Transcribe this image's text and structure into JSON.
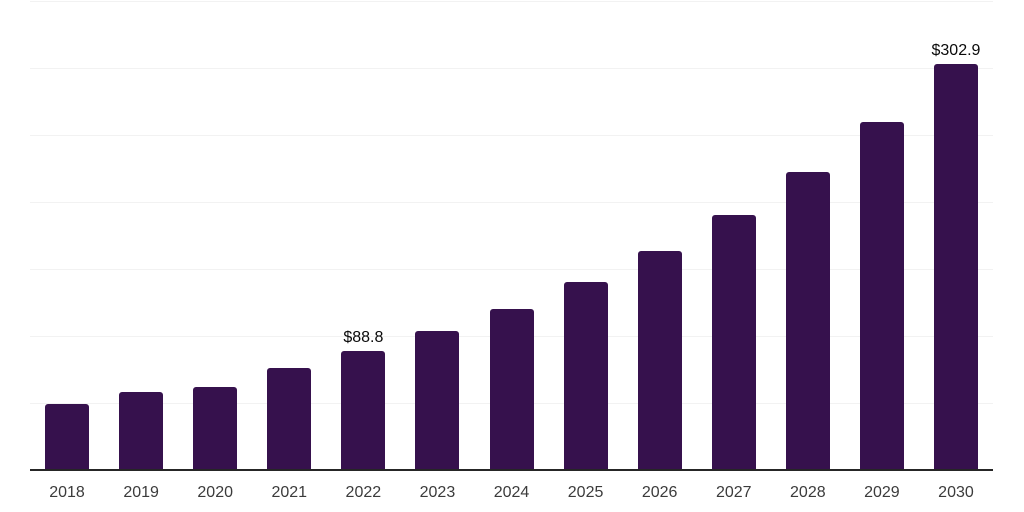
{
  "chart": {
    "colors": {
      "background": "#ffffff",
      "bar": "#36114D",
      "gridline": "#f2f2f2",
      "axis_line": "#262626",
      "tick_label": "#3b3b3b",
      "value_label": "#0a0a0a"
    }
  },
  "chart_data": {
    "type": "bar",
    "title": "",
    "xlabel": "",
    "ylabel": "",
    "categories": [
      "2018",
      "2019",
      "2020",
      "2021",
      "2022",
      "2023",
      "2024",
      "2025",
      "2026",
      "2027",
      "2028",
      "2029",
      "2030"
    ],
    "values": [
      49.6,
      58.1,
      61.7,
      76.4,
      88.8,
      103.4,
      120.3,
      140.3,
      163.2,
      190.3,
      222.2,
      259.8,
      302.9
    ],
    "value_labels": {
      "2022": "$88.8",
      "2030": "$302.9"
    },
    "ylim": [
      0,
      350
    ],
    "gridline_step": 50,
    "grid": "horizontal-only",
    "y_tick_labels_visible": false,
    "legend": "none"
  }
}
